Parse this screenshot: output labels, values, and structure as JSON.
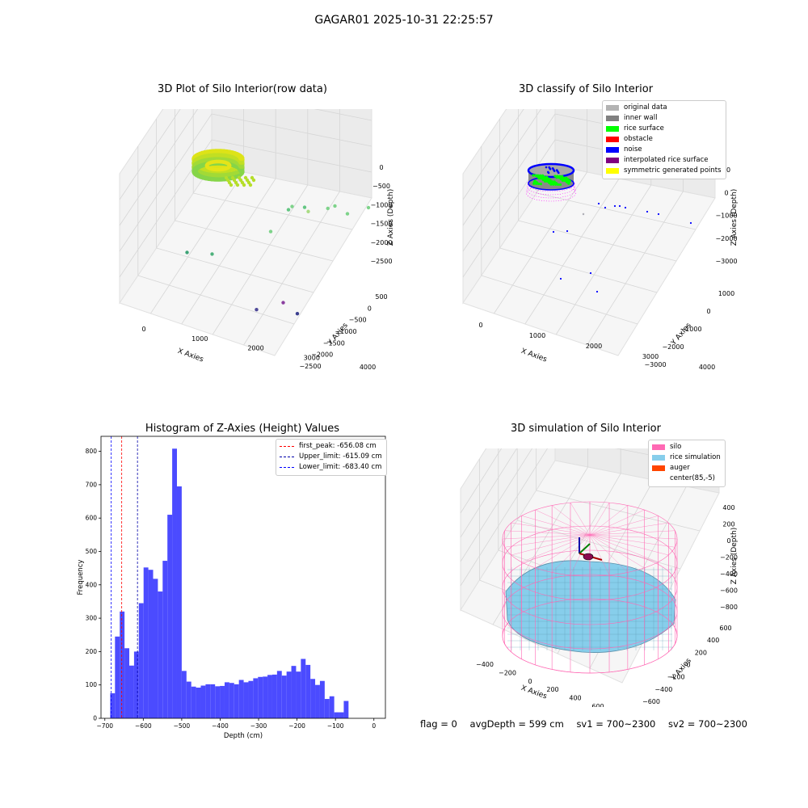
{
  "figure_title": "GAGAR01 2025-10-31 22:25:57",
  "status": {
    "flag": "flag = 0",
    "avg_depth": "avgDepth = 599 cm",
    "sv1": "sv1 = 700~2300",
    "sv2": "sv2 = 700~2300"
  },
  "chart_data": [
    {
      "type": "scatter3d",
      "title": "3D Plot of Silo Interior(row data)",
      "xlabel": "X Axies",
      "ylabel": "Y Axies",
      "zlabel": "Z Axies (Depth)",
      "x_ticks": [
        "0",
        "1000",
        "2000",
        "3000",
        "4000"
      ],
      "y_ticks": [
        "500",
        "0",
        "−500",
        "−1000",
        "−1500",
        "−2000",
        "−2500"
      ],
      "z_ticks": [
        "0",
        "−500",
        "−1000",
        "−1500",
        "−2000",
        "−2500"
      ],
      "colormap": "viridis",
      "outlier_points": [
        {
          "x": 3550,
          "y": -1600,
          "z": -420,
          "color": "#7ed38a"
        },
        {
          "x": 3700,
          "y": -1700,
          "z": -350,
          "color": "#7ed38a"
        },
        {
          "x": 3000,
          "y": -1400,
          "z": -430,
          "color": "#63c682"
        },
        {
          "x": 2700,
          "y": -1300,
          "z": -430,
          "color": "#7ed38a"
        },
        {
          "x": 3100,
          "y": -1400,
          "z": -520,
          "color": "#aadc84"
        },
        {
          "x": 2600,
          "y": -1300,
          "z": -500,
          "color": "#63c682"
        },
        {
          "x": 4000,
          "y": -1800,
          "z": -500,
          "color": "#7ed38a"
        },
        {
          "x": 4400,
          "y": -2200,
          "z": -300,
          "color": "#7ed38a"
        },
        {
          "x": 2200,
          "y": -1100,
          "z": -1000,
          "color": "#7ed38a"
        },
        {
          "x": 900,
          "y": -400,
          "z": -1600,
          "color": "#4eb17c"
        },
        {
          "x": 300,
          "y": -200,
          "z": -1600,
          "color": "#3da376"
        },
        {
          "x": 2500,
          "y": -1200,
          "z": -2500,
          "color": "#8b3fa0"
        },
        {
          "x": 1900,
          "y": -900,
          "z": -2700,
          "color": "#4e4998"
        },
        {
          "x": 2800,
          "y": -1400,
          "z": -2700,
          "color": "#3b3f8f"
        }
      ]
    },
    {
      "type": "scatter3d",
      "title": "3D classify of Silo Interior",
      "xlabel": "X Axies",
      "ylabel": "Y Axies",
      "zlabel": "Z Axies (Depth)",
      "x_ticks": [
        "0",
        "1000",
        "2000",
        "3000",
        "4000"
      ],
      "y_ticks": [
        "1000",
        "0",
        "−1000",
        "−2000",
        "−3000"
      ],
      "z_ticks": [
        "00",
        "0",
        "−1000",
        "−2000",
        "−3000"
      ],
      "legend": [
        {
          "label": "original data",
          "color": "#b3b3b3"
        },
        {
          "label": "inner wall",
          "color": "#808080"
        },
        {
          "label": "rice surface",
          "color": "#00ff00"
        },
        {
          "label": "obstacle",
          "color": "#ff0000"
        },
        {
          "label": "noise",
          "color": "#0000ff"
        },
        {
          "label": "interpolated rice surface",
          "color": "#800080"
        },
        {
          "label": "symmetric generated points",
          "color": "#ffff00"
        }
      ]
    },
    {
      "type": "bar",
      "title": "Histogram of Z-Axies (Height) Values",
      "xlabel": "Depth (cm)",
      "ylabel": "Frequency",
      "bar_color": "#4b4bff",
      "xlim": [
        -710,
        30
      ],
      "ylim": [
        0,
        845
      ],
      "x_ticks": [
        -700,
        -600,
        -500,
        -400,
        -300,
        -200,
        -100,
        0
      ],
      "x_tick_labels": [
        "−700",
        "−600",
        "−500",
        "−400",
        "−300",
        "−200",
        "−100",
        "0"
      ],
      "y_ticks": [
        0,
        100,
        200,
        300,
        400,
        500,
        600,
        700,
        800
      ],
      "bin_start": -686,
      "bin_width": 12.4,
      "values": [
        75,
        245,
        320,
        210,
        158,
        200,
        345,
        452,
        445,
        418,
        380,
        472,
        610,
        808,
        695,
        142,
        110,
        95,
        92,
        98,
        102,
        102,
        96,
        97,
        108,
        106,
        102,
        115,
        108,
        112,
        120,
        124,
        125,
        130,
        131,
        142,
        128,
        140,
        157,
        140,
        178,
        160,
        118,
        100,
        112,
        58,
        66,
        18,
        18,
        52
      ],
      "vlines": [
        {
          "label": "first_peak: -656.08 cm",
          "x": -656.08,
          "color": "#ff0000"
        },
        {
          "label": "Upper_limit: -615.09 cm",
          "x": -615.09,
          "color": "#0000aa"
        },
        {
          "label": "Lower_limit: -683.40 cm",
          "x": -683.4,
          "color": "#0000ff"
        }
      ]
    },
    {
      "type": "surface3d",
      "title": "3D simulation of Silo Interior",
      "xlabel": "X Axies",
      "ylabel": "Y Axies",
      "zlabel": "Z Axies (Depth)",
      "x_ticks": [
        "−400",
        "−200",
        "0",
        "200",
        "400",
        "600"
      ],
      "y_ticks": [
        "600",
        "400",
        "200",
        "0",
        "−200",
        "−400",
        "−600"
      ],
      "z_ticks": [
        "400",
        "200",
        "0",
        "−200",
        "−400",
        "−600",
        "−800"
      ],
      "legend": [
        {
          "label": "silo",
          "color": "#ff69b4"
        },
        {
          "label": "rice simulation",
          "color": "#87ceeb"
        },
        {
          "label": "auger",
          "color": "#ff4500"
        },
        {
          "label": "center(85,-5)",
          "color": "#ffffff"
        }
      ]
    }
  ]
}
